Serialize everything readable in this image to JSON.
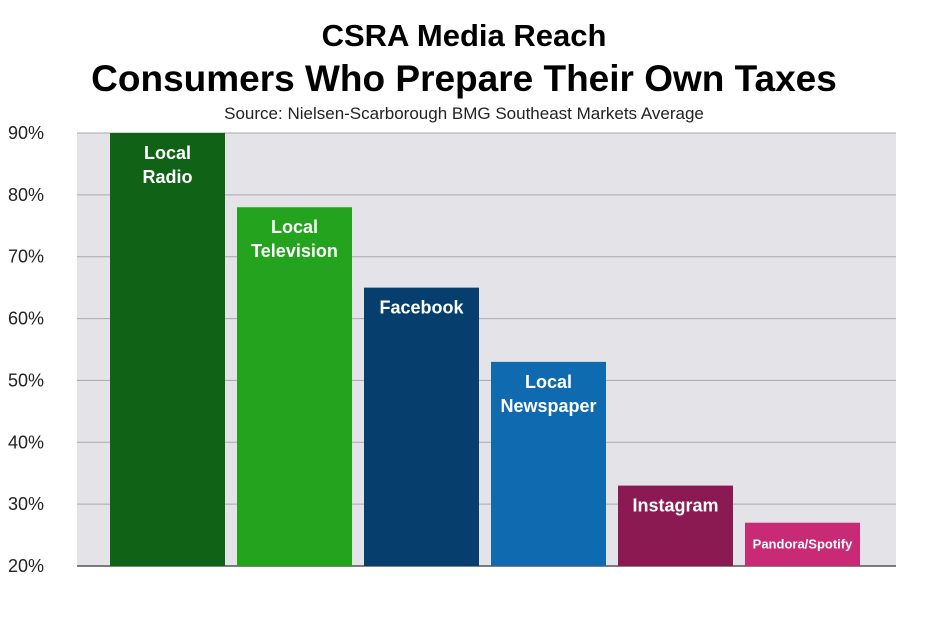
{
  "header": {
    "title": "CSRA Media Reach",
    "headline": "Consumers Who Prepare Their Own Taxes",
    "source": "Source: Nielsen-Scarborough BMG Southeast Markets Average"
  },
  "chart_data": {
    "type": "bar",
    "categories": [
      "Local Radio",
      "Local Television",
      "Facebook",
      "Local Newspaper",
      "Instagram",
      "Pandora/Spotify"
    ],
    "label_lines": [
      [
        "Local",
        "Radio"
      ],
      [
        "Local",
        "Television"
      ],
      [
        "Facebook"
      ],
      [
        "Local",
        "Newspaper"
      ],
      [
        "Instagram"
      ],
      [
        "Pandora/Spotify"
      ]
    ],
    "values": [
      90,
      78,
      65,
      53,
      33,
      27
    ],
    "colors": [
      "#0f6216",
      "#23a31e",
      "#063f6e",
      "#106ab0",
      "#8b1a52",
      "#c92a76"
    ],
    "ylim": [
      20,
      90
    ],
    "yticks": [
      20,
      30,
      40,
      50,
      60,
      70,
      80,
      90
    ],
    "ytick_labels": [
      "20%",
      "30%",
      "40%",
      "50%",
      "60%",
      "70%",
      "80%",
      "90%"
    ],
    "plot_background": "#e4e3e8",
    "grid": true,
    "title": "Consumers Who Prepare Their Own Taxes",
    "xlabel": "",
    "ylabel": ""
  }
}
